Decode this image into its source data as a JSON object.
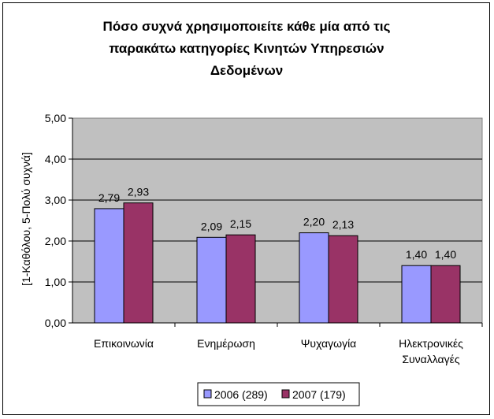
{
  "chart_data": {
    "type": "bar",
    "title_lines": [
      "Πόσο συχνά χρησιμοποιείτε κάθε μία από τις",
      "παρακάτω κατηγορίες Κινητών Υπηρεσιών",
      "Δεδομένων"
    ],
    "ylabel": "[1-Καθόλου, 5-Πολύ συχνά]",
    "ylim": [
      0,
      5
    ],
    "yticks": [
      "0,00",
      "1,00",
      "2,00",
      "3,00",
      "4,00",
      "5,00"
    ],
    "categories": [
      [
        "Επικοινωνία"
      ],
      [
        "Ενημέρωση"
      ],
      [
        "Ψυχαγωγία"
      ],
      [
        "Ηλεκτρονικές",
        "Συναλλαγές"
      ]
    ],
    "series": [
      {
        "name": "2006 (289)",
        "color": "#9999FF",
        "values": [
          2.79,
          2.09,
          2.2,
          1.4
        ],
        "labels": [
          "2,79",
          "2,09",
          "2,20",
          "1,40"
        ]
      },
      {
        "name": "2007 (179)",
        "color": "#993366",
        "values": [
          2.93,
          2.15,
          2.13,
          1.4
        ],
        "labels": [
          "2,93",
          "2,15",
          "2,13",
          "1,40"
        ]
      }
    ],
    "plot_background": "#C0C0C0",
    "grid": true,
    "legend_position": "bottom"
  }
}
